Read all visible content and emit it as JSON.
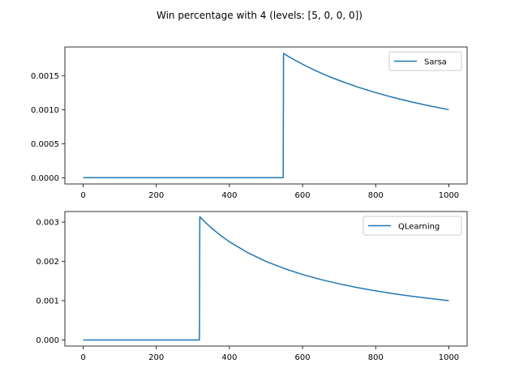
{
  "figure": {
    "title": "Win percentage with 4 (levels: [5, 0, 0, 0])"
  },
  "chart_data": [
    {
      "type": "line",
      "title": "",
      "xlabel": "",
      "ylabel": "",
      "xlim": [
        -50,
        1050
      ],
      "ylim": [
        -9.15e-05,
        0.00192
      ],
      "x_ticks": [
        0,
        200,
        400,
        600,
        800,
        1000
      ],
      "x_tick_labels": [
        "0",
        "200",
        "400",
        "600",
        "800",
        "1000"
      ],
      "y_ticks": [
        0,
        0.0005,
        0.001,
        0.0015
      ],
      "y_tick_labels": [
        "0.0000",
        "0.0005",
        "0.0010",
        "0.0015"
      ],
      "grid": false,
      "legend": "upper right",
      "series": [
        {
          "name": "Sarsa",
          "color": "#1f77b4",
          "x": [
            0,
            547,
            548,
            560,
            580,
            600,
            625,
            650,
            675,
            700,
            750,
            800,
            850,
            900,
            950,
            1000
          ],
          "y": [
            0,
            0,
            0.001825,
            0.001786,
            0.001724,
            0.001667,
            0.0016,
            0.001538,
            0.001481,
            0.001429,
            0.001333,
            0.00125,
            0.001176,
            0.001111,
            0.001053,
            0.001
          ]
        }
      ]
    },
    {
      "type": "line",
      "title": "",
      "xlabel": "",
      "ylabel": "",
      "xlim": [
        -50,
        1050
      ],
      "ylim": [
        -0.000156,
        0.00327
      ],
      "x_ticks": [
        0,
        200,
        400,
        600,
        800,
        1000
      ],
      "x_tick_labels": [
        "0",
        "200",
        "400",
        "600",
        "800",
        "1000"
      ],
      "y_ticks": [
        0,
        0.001,
        0.002,
        0.003
      ],
      "y_tick_labels": [
        "0.000",
        "0.001",
        "0.002",
        "0.003"
      ],
      "grid": false,
      "legend": "upper right",
      "series": [
        {
          "name": "QLearning",
          "color": "#1f77b4",
          "x": [
            0,
            318,
            319,
            330,
            350,
            375,
            400,
            450,
            500,
            550,
            600,
            650,
            700,
            750,
            800,
            850,
            900,
            950,
            1000
          ],
          "y": [
            0,
            0,
            0.003135,
            0.00303,
            0.002857,
            0.002667,
            0.0025,
            0.002222,
            0.002,
            0.001818,
            0.001667,
            0.001538,
            0.001429,
            0.001333,
            0.00125,
            0.001176,
            0.001111,
            0.001053,
            0.001
          ]
        }
      ]
    }
  ]
}
